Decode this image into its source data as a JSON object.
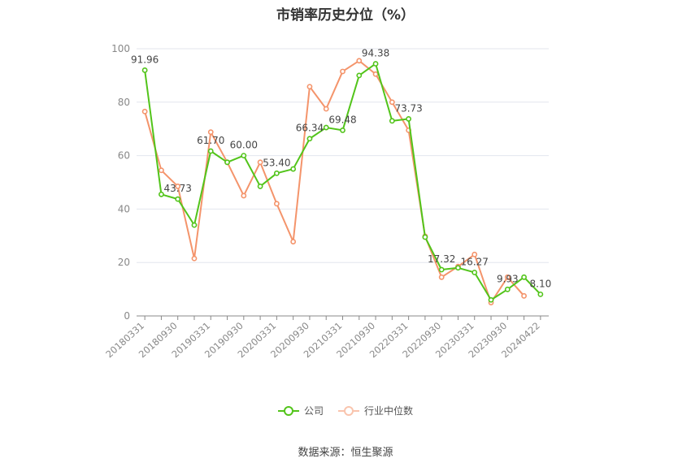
{
  "chart_data": {
    "type": "line",
    "title": "市销率历史分位（%）",
    "xlabel": "",
    "ylabel": "",
    "ylim": [
      0,
      100
    ],
    "yticks": [
      0,
      20,
      40,
      60,
      80,
      100
    ],
    "grid": true,
    "legend_position": "bottom",
    "x": [
      "20180331",
      "20180630",
      "20180930",
      "20181231",
      "20190331",
      "20190630",
      "20190930",
      "20191231",
      "20200331",
      "20200630",
      "20200930",
      "20201231",
      "20210331",
      "20210630",
      "20210930",
      "20211231",
      "20220331",
      "20220630",
      "20220930",
      "20221231",
      "20230331",
      "20230630",
      "20230930",
      "20231231",
      "20240422"
    ],
    "x_tick_labels": [
      "20180331",
      "20180930",
      "20190331",
      "20190930",
      "20200331",
      "20200930",
      "20210331",
      "20210930",
      "20220331",
      "20220930",
      "20230331",
      "20230930",
      "20240422"
    ],
    "series": [
      {
        "name": "公司",
        "color": "#52c41a",
        "values": [
          91.96,
          45.5,
          43.73,
          34.0,
          61.7,
          57.5,
          60.0,
          48.5,
          53.4,
          55.0,
          66.34,
          70.5,
          69.48,
          90.0,
          94.38,
          73.0,
          73.73,
          29.5,
          17.32,
          18.0,
          16.27,
          6.0,
          9.93,
          14.5,
          8.1
        ],
        "data_labels": {
          "0": "91.96",
          "2": "43.73",
          "4": "61.70",
          "6": "60.00",
          "8": "53.40",
          "10": "66.34",
          "12": "69.48",
          "14": "94.38",
          "16": "73.73",
          "18": "17.32",
          "20": "16.27",
          "22": "9.93",
          "24": "8.10"
        }
      },
      {
        "name": "行业中位数",
        "color": "#f4946b",
        "values": [
          76.5,
          54.5,
          48.5,
          21.5,
          68.8,
          57.5,
          45.0,
          57.5,
          42.0,
          27.8,
          85.8,
          77.5,
          91.5,
          95.5,
          90.5,
          80.0,
          69.5,
          29.8,
          14.5,
          18.5,
          23.0,
          5.0,
          14.5,
          7.5,
          null
        ]
      }
    ]
  },
  "source": "数据来源：恒生聚源"
}
